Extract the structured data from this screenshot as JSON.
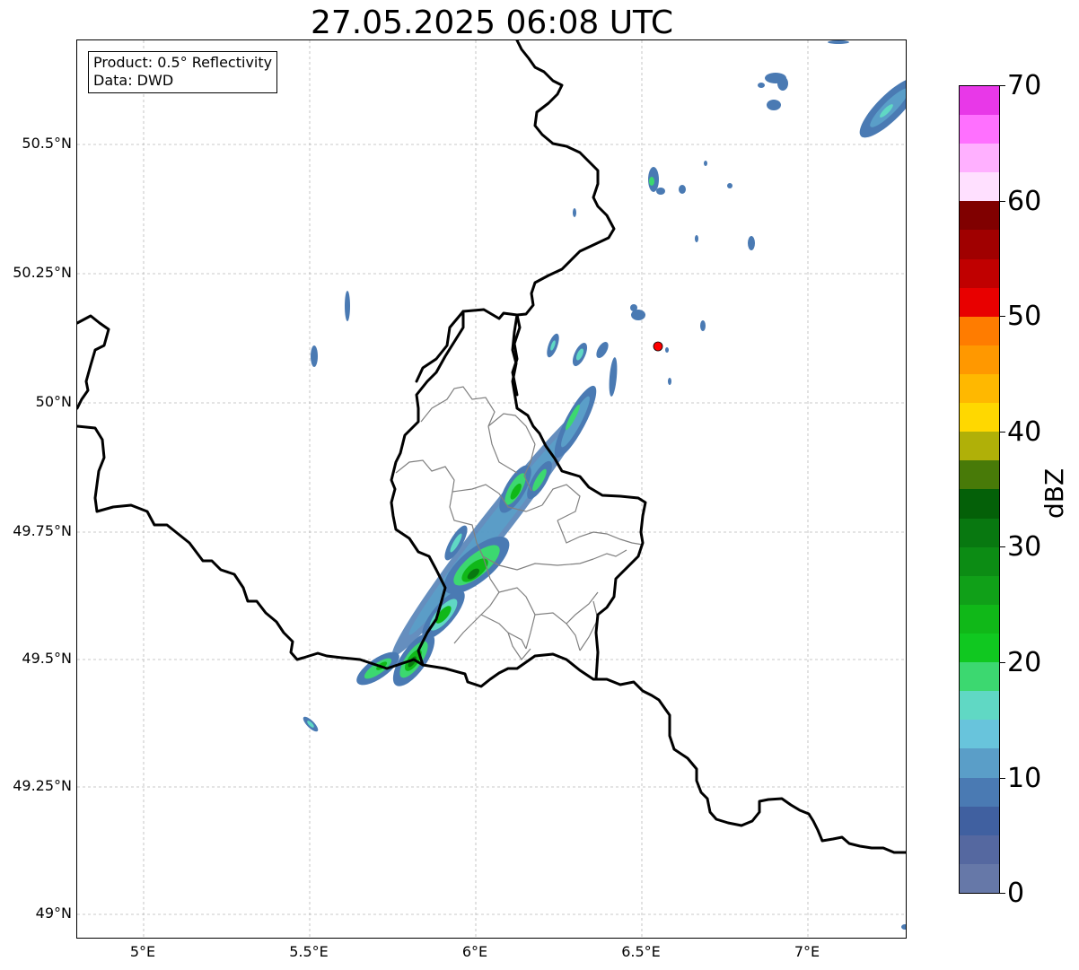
{
  "title": "27.05.2025 06:08 UTC",
  "info": {
    "product": "Product: 0.5° Reflectivity",
    "data": "Data: DWD"
  },
  "axes": {
    "lat_ticks": [
      "50.5°N",
      "50.25°N",
      "50°N",
      "49.75°N",
      "49.5°N",
      "49.25°N",
      "49°N"
    ],
    "lon_ticks": [
      "5°E",
      "5.5°E",
      "6°E",
      "6.5°E",
      "7°E"
    ]
  },
  "map_style": {
    "grid": true,
    "border_color": "#000000",
    "region_border_color": "#808080",
    "marker_color": "#ff0000"
  },
  "colorbar": {
    "label": "dBZ",
    "tick_labels": [
      "0",
      "10",
      "20",
      "30",
      "40",
      "50",
      "60",
      "70"
    ],
    "range": [
      0,
      70
    ],
    "colors": [
      "#6678a8",
      "#5568a0",
      "#4060a0",
      "#4a7ab3",
      "#5a9ec8",
      "#68c4dc",
      "#60d8c4",
      "#3cd870",
      "#10c820",
      "#10b818",
      "#10a018",
      "#0c8c14",
      "#087810",
      "#046008",
      "#487a08",
      "#b0b008",
      "#ffd800",
      "#ffb800",
      "#ff9800",
      "#ff7c00",
      "#e80000",
      "#c00000",
      "#a00000",
      "#800000",
      "#ffe0ff",
      "#ffb0ff",
      "#ff70ff",
      "#e838e8"
    ]
  }
}
